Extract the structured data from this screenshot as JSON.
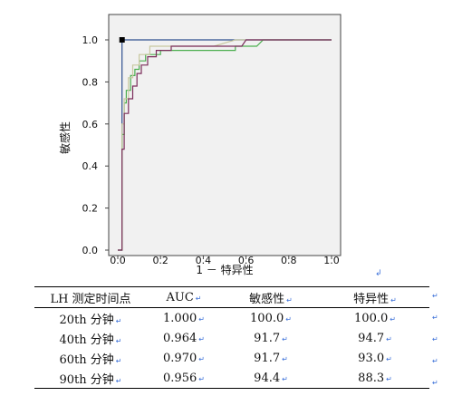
{
  "chart_data": {
    "type": "line",
    "ylabel": "敏感性",
    "xlabel": "1 － 特异性",
    "xlim": [
      0.0,
      1.0
    ],
    "ylim": [
      0.0,
      1.0
    ],
    "x_ticks": [
      "0.0",
      "0.2",
      "0.4",
      "0.6",
      "0.8",
      "1.0"
    ],
    "y_ticks": [
      "0.0",
      "0.2",
      "0.4",
      "0.6",
      "0.8",
      "1.0"
    ],
    "grid": false,
    "series": [
      {
        "color": "#2f4f8f",
        "points": [
          [
            0,
            0
          ],
          [
            0.02,
            0
          ],
          [
            0.02,
            1.0
          ],
          [
            1.0,
            1.0
          ]
        ]
      },
      {
        "color": "#4caf50",
        "points": [
          [
            0,
            0
          ],
          [
            0.02,
            0
          ],
          [
            0.02,
            0.55
          ],
          [
            0.03,
            0.55
          ],
          [
            0.03,
            0.7
          ],
          [
            0.04,
            0.7
          ],
          [
            0.04,
            0.76
          ],
          [
            0.06,
            0.76
          ],
          [
            0.06,
            0.83
          ],
          [
            0.08,
            0.83
          ],
          [
            0.08,
            0.86
          ],
          [
            0.1,
            0.86
          ],
          [
            0.1,
            0.9
          ],
          [
            0.13,
            0.9
          ],
          [
            0.13,
            0.93
          ],
          [
            0.2,
            0.93
          ],
          [
            0.2,
            0.95
          ],
          [
            0.55,
            0.95
          ],
          [
            0.55,
            0.97
          ],
          [
            0.65,
            0.97
          ],
          [
            0.68,
            1.0
          ],
          [
            1.0,
            1.0
          ]
        ]
      },
      {
        "color": "#c8c8a0",
        "points": [
          [
            0,
            0
          ],
          [
            0.02,
            0
          ],
          [
            0.02,
            0.6
          ],
          [
            0.03,
            0.6
          ],
          [
            0.03,
            0.72
          ],
          [
            0.05,
            0.72
          ],
          [
            0.05,
            0.82
          ],
          [
            0.07,
            0.82
          ],
          [
            0.07,
            0.88
          ],
          [
            0.1,
            0.88
          ],
          [
            0.1,
            0.93
          ],
          [
            0.15,
            0.93
          ],
          [
            0.15,
            0.97
          ],
          [
            0.45,
            0.97
          ],
          [
            0.55,
            1.0
          ],
          [
            1.0,
            1.0
          ]
        ]
      },
      {
        "color": "#7b2d5b",
        "points": [
          [
            0,
            0
          ],
          [
            0.02,
            0
          ],
          [
            0.02,
            0.48
          ],
          [
            0.03,
            0.48
          ],
          [
            0.03,
            0.65
          ],
          [
            0.05,
            0.65
          ],
          [
            0.05,
            0.72
          ],
          [
            0.07,
            0.72
          ],
          [
            0.07,
            0.78
          ],
          [
            0.09,
            0.78
          ],
          [
            0.09,
            0.84
          ],
          [
            0.11,
            0.84
          ],
          [
            0.11,
            0.88
          ],
          [
            0.14,
            0.88
          ],
          [
            0.14,
            0.92
          ],
          [
            0.18,
            0.92
          ],
          [
            0.18,
            0.95
          ],
          [
            0.25,
            0.95
          ],
          [
            0.25,
            0.97
          ],
          [
            0.58,
            0.97
          ],
          [
            0.6,
            1.0
          ],
          [
            1.0,
            1.0
          ]
        ]
      }
    ],
    "marker": {
      "x": 0.02,
      "y": 1.0
    }
  },
  "return_marks": {
    "after_chart": "↲",
    "mark": "↵"
  },
  "table": {
    "headers": [
      "LH 测定时间点",
      "AUC",
      "敏感性",
      "特异性"
    ],
    "rows": [
      {
        "point": "20th 分钟",
        "auc": "1.000",
        "sens": "100.0",
        "spec": "100.0"
      },
      {
        "point": "40th 分钟",
        "auc": "0.964",
        "sens": "91.7",
        "spec": "94.7"
      },
      {
        "point": "60th 分钟",
        "auc": "0.970",
        "sens": "91.7",
        "spec": "93.0"
      },
      {
        "point": "90th 分钟",
        "auc": "0.956",
        "sens": "94.4",
        "spec": "88.3"
      }
    ]
  }
}
